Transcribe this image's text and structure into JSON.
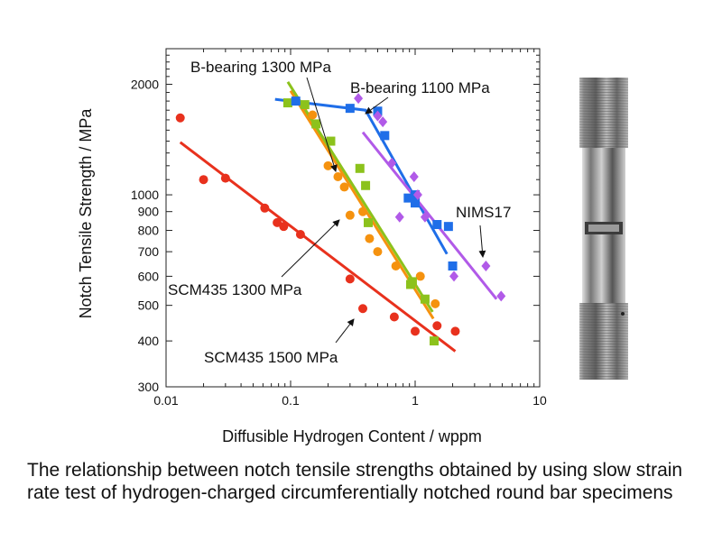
{
  "chart_data": {
    "type": "scatter",
    "xlabel": "Diffusible Hydrogen Content / wppm",
    "ylabel": "Notch Tensile Strength / MPa",
    "xscale": "log",
    "yscale": "log",
    "xlim": [
      0.01,
      10
    ],
    "ylim": [
      300,
      2500
    ],
    "x_ticks": [
      0.01,
      0.1,
      1,
      10
    ],
    "x_tick_labels": [
      "0.01",
      "0.1",
      "1",
      "10"
    ],
    "y_ticks": [
      300,
      400,
      500,
      600,
      700,
      800,
      900,
      1000,
      2000
    ],
    "y_tick_labels": [
      "300",
      "400",
      "500",
      "600",
      "700",
      "800",
      "900",
      "1000",
      "2000"
    ],
    "grid": false,
    "series": [
      {
        "name": "SCM435 1500 MPa",
        "color": "#e8311d",
        "marker": "circle",
        "x": [
          0.013,
          0.02,
          0.03,
          0.062,
          0.078,
          0.088,
          0.12,
          0.3,
          0.38,
          0.68,
          1.0,
          1.5,
          2.1
        ],
        "y": [
          1620,
          1100,
          1110,
          920,
          840,
          820,
          780,
          590,
          490,
          465,
          425,
          440,
          425
        ],
        "fit": [
          [
            0.013,
            1390
          ],
          [
            2.1,
            375
          ]
        ]
      },
      {
        "name": "SCM435 1300 MPa",
        "color": "#f5920f",
        "marker": "circle",
        "x": [
          0.13,
          0.15,
          0.2,
          0.24,
          0.27,
          0.3,
          0.38,
          0.43,
          0.5,
          0.7,
          0.95,
          1.1,
          1.45
        ],
        "y": [
          1750,
          1650,
          1200,
          1120,
          1050,
          880,
          900,
          760,
          700,
          640,
          570,
          600,
          505
        ],
        "fit": [
          [
            0.1,
            1920
          ],
          [
            1.4,
            460
          ]
        ]
      },
      {
        "name": "B-bearing 1300 MPa",
        "color": "#8cc21c",
        "marker": "square",
        "x": [
          0.095,
          0.13,
          0.16,
          0.21,
          0.36,
          0.4,
          0.42,
          0.92,
          0.95,
          1.2,
          1.42
        ],
        "y": [
          1780,
          1760,
          1560,
          1400,
          1180,
          1060,
          840,
          570,
          580,
          520,
          400
        ],
        "fit": [
          [
            0.095,
            2030
          ],
          [
            1.38,
            480
          ]
        ]
      },
      {
        "name": "B-bearing 1100 MPa",
        "color": "#1f6ee8",
        "marker": "square",
        "x": [
          0.11,
          0.3,
          0.5,
          0.57,
          0.88,
          1.0,
          1.0,
          1.5,
          1.85,
          2.0
        ],
        "y": [
          1800,
          1720,
          1690,
          1450,
          980,
          1000,
          950,
          830,
          820,
          640
        ],
        "fit": [
          [
            0.075,
            1820
          ],
          [
            0.4,
            1700
          ],
          [
            1.8,
            690
          ]
        ]
      },
      {
        "name": "NIMS17",
        "color": "#b15ae8",
        "marker": "diamond",
        "x": [
          0.35,
          0.5,
          0.55,
          0.65,
          0.75,
          0.98,
          1.05,
          1.2,
          2.05,
          3.7,
          4.9
        ],
        "y": [
          1830,
          1640,
          1580,
          1220,
          870,
          1120,
          1000,
          870,
          600,
          640,
          530
        ],
        "fit": [
          [
            0.38,
            1480
          ],
          [
            4.5,
            520
          ]
        ]
      }
    ],
    "annotations": [
      "B-bearing 1300 MPa",
      "B-bearing 1100 MPa",
      "NIMS17",
      "SCM435 1300 MPa",
      "SCM435 1500 MPa"
    ]
  },
  "specimen_image": "circumferentially-notched-round-bar-photo",
  "caption": "The relationship between notch tensile strengths obtained by using slow strain rate test of hydrogen-charged circumferentially notched round bar specimens"
}
